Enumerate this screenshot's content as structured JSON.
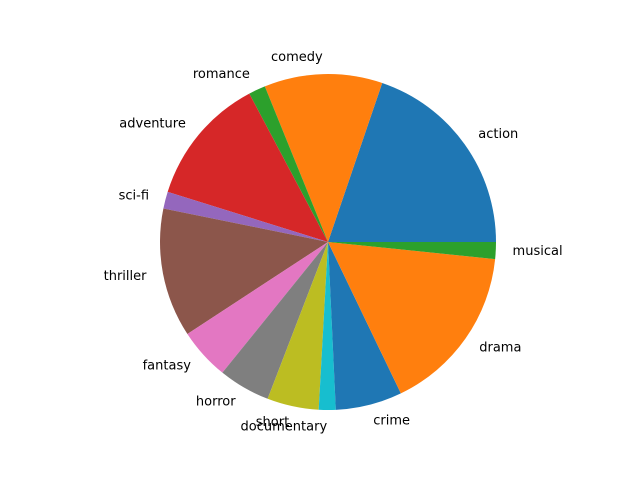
{
  "chart_data": {
    "type": "pie",
    "title": "",
    "start_angle_deg": 0,
    "direction": "counterclockwise",
    "slices": [
      {
        "label": "action",
        "value": 0.207,
        "color": "#1f77b4"
      },
      {
        "label": "comedy",
        "value": 0.119,
        "color": "#ff7f0e"
      },
      {
        "label": "romance",
        "value": 0.017,
        "color": "#2ca02c"
      },
      {
        "label": "adventure",
        "value": 0.13,
        "color": "#d62728"
      },
      {
        "label": "sci-fi",
        "value": 0.017,
        "color": "#9467bd"
      },
      {
        "label": "thriller",
        "value": 0.13,
        "color": "#8c564b"
      },
      {
        "label": "fantasy",
        "value": 0.052,
        "color": "#e377c2"
      },
      {
        "label": "horror",
        "value": 0.052,
        "color": "#7f7f7f"
      },
      {
        "label": "short",
        "value": 0.052,
        "color": "#bcbd22"
      },
      {
        "label": "documentary",
        "value": 0.017,
        "color": "#17becf"
      },
      {
        "label": "crime",
        "value": 0.067,
        "color": "#1f77b4"
      },
      {
        "label": "drama",
        "value": 0.17,
        "color": "#ff7f0e"
      },
      {
        "label": "musical",
        "value": 0.017,
        "color": "#2ca02c"
      }
    ]
  }
}
